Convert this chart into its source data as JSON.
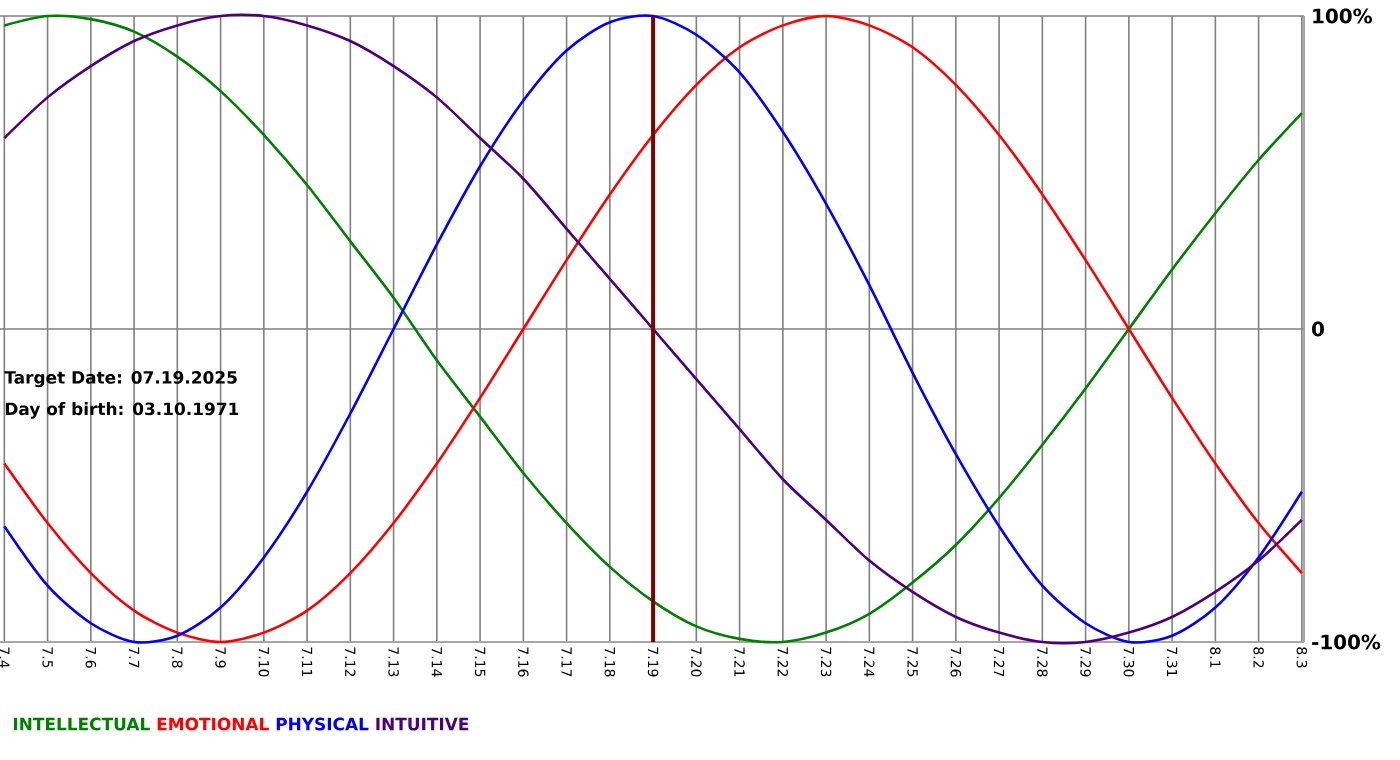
{
  "chart_data": {
    "type": "line",
    "categories": [
      "7.4",
      "7.5",
      "7.6",
      "7.7",
      "7.8",
      "7.9",
      "7.10",
      "7.11",
      "7.12",
      "7.13",
      "7.14",
      "7.15",
      "7.16",
      "7.17",
      "7.18",
      "7.19",
      "7.20",
      "7.21",
      "7.22",
      "7.23",
      "7.24",
      "7.25",
      "7.26",
      "7.27",
      "7.28",
      "7.29",
      "7.30",
      "7.31",
      "8.1",
      "8.2",
      "8.3"
    ],
    "series": [
      {
        "name": "INTELLECTUAL",
        "color": "#008000",
        "values": [
          97,
          100,
          99,
          95,
          87,
          76,
          62,
          46,
          28,
          10,
          -10,
          -28,
          -46,
          -62,
          -76,
          -87,
          -95,
          -99,
          -100,
          -97,
          -91,
          -81,
          -69,
          -54,
          -37,
          -19,
          0,
          19,
          37,
          54,
          69
        ]
      },
      {
        "name": "EMOTIONAL",
        "color": "#ff0000",
        "values": [
          -43,
          -62,
          -78,
          -90,
          -97,
          -100,
          -97,
          -90,
          -78,
          -62,
          -43,
          -22,
          0,
          22,
          43,
          62,
          78,
          90,
          97,
          100,
          97,
          90,
          78,
          62,
          43,
          22,
          0,
          -22,
          -43,
          -62,
          -78
        ]
      },
      {
        "name": "PHYSICAL",
        "color": "#0000ff",
        "values": [
          -63,
          -82,
          -94,
          -100,
          -98,
          -89,
          -73,
          -52,
          -27,
          0,
          27,
          52,
          73,
          89,
          98,
          100,
          94,
          82,
          63,
          40,
          14,
          -14,
          -40,
          -63,
          -82,
          -94,
          -100,
          -98,
          -89,
          -73,
          -52
        ]
      },
      {
        "name": "INTUITIVE",
        "color": "#4b0082",
        "values": [
          61,
          74,
          84,
          92,
          97,
          100,
          100,
          97,
          92,
          84,
          74,
          61,
          48,
          32,
          16,
          0,
          -16,
          -32,
          -48,
          -61,
          -74,
          -84,
          -92,
          -97,
          -100,
          -100,
          -97,
          -92,
          -84,
          -74,
          -61
        ]
      }
    ],
    "ylim": [
      -100,
      100
    ],
    "yticks": [
      {
        "value": 100,
        "label": "100%"
      },
      0,
      {
        "value": -100,
        "label": "-100%"
      }
    ],
    "grid": true,
    "legend": "bottom",
    "marker": "none",
    "line_style": "solid",
    "ref_lines": [
      {
        "axis": "x",
        "value": "7.19",
        "color": "#800000"
      }
    ],
    "annotations": [
      "Target Date: 07.19.2025",
      "Day of birth: 03.10.1971"
    ]
  }
}
